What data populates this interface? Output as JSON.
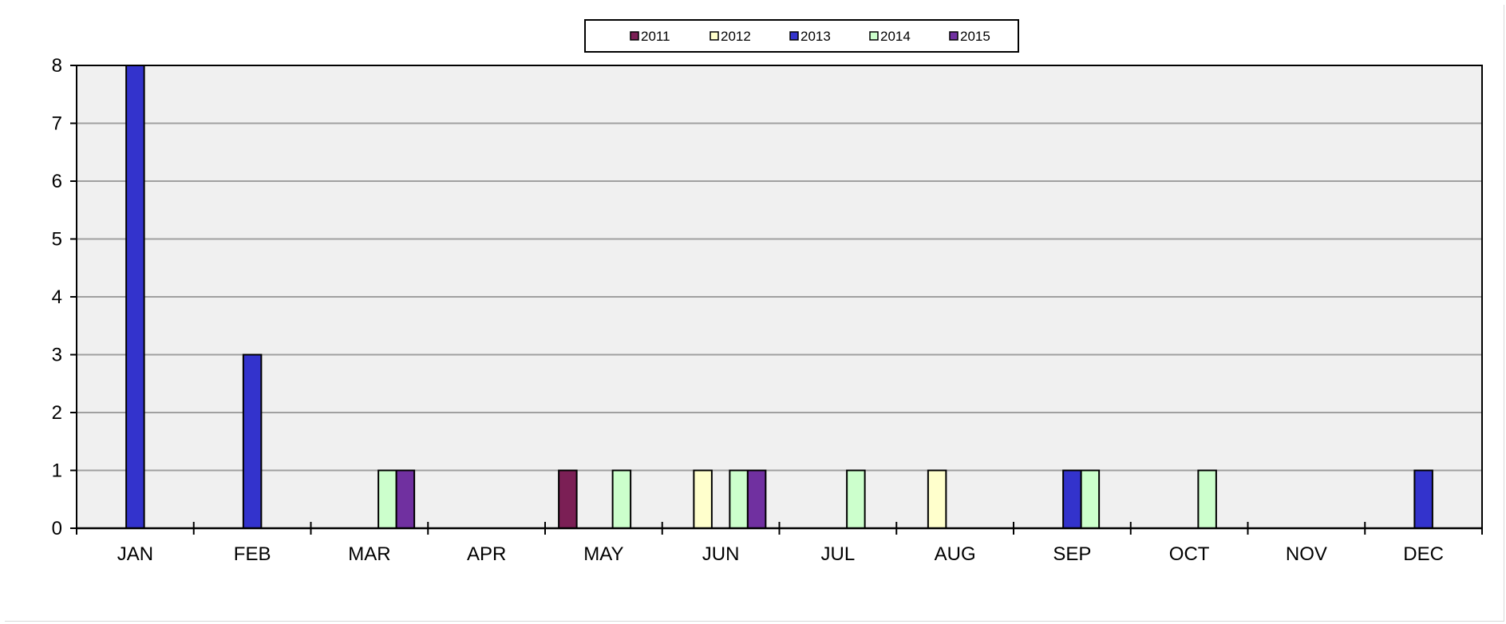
{
  "chart_data": {
    "type": "bar",
    "categories": [
      "JAN",
      "FEB",
      "MAR",
      "APR",
      "MAY",
      "JUN",
      "JUL",
      "AUG",
      "SEP",
      "OCT",
      "NOV",
      "DEC"
    ],
    "series": [
      {
        "name": "2011",
        "color": "#7b1f55",
        "values": [
          0,
          0,
          0,
          0,
          1,
          0,
          0,
          0,
          0,
          0,
          0,
          0
        ]
      },
      {
        "name": "2012",
        "color": "#ffffcc",
        "values": [
          0,
          0,
          0,
          0,
          0,
          1,
          0,
          1,
          0,
          0,
          0,
          0
        ]
      },
      {
        "name": "2013",
        "color": "#3333cc",
        "values": [
          8,
          3,
          0,
          0,
          0,
          0,
          0,
          0,
          1,
          0,
          0,
          1
        ]
      },
      {
        "name": "2014",
        "color": "#ccffcc",
        "values": [
          0,
          0,
          1,
          0,
          1,
          1,
          1,
          0,
          1,
          1,
          0,
          0
        ]
      },
      {
        "name": "2015",
        "color": "#7030a0",
        "values": [
          0,
          0,
          1,
          0,
          0,
          1,
          0,
          0,
          0,
          0,
          0,
          0
        ]
      }
    ],
    "yticks": [
      "0",
      "1",
      "2",
      "3",
      "4",
      "5",
      "6",
      "7",
      "8"
    ],
    "ylim": [
      0,
      8
    ],
    "grid": true,
    "legend_position": "top-center",
    "plot_background": "#f0f0f0",
    "grid_color": "#a0a0a0"
  }
}
